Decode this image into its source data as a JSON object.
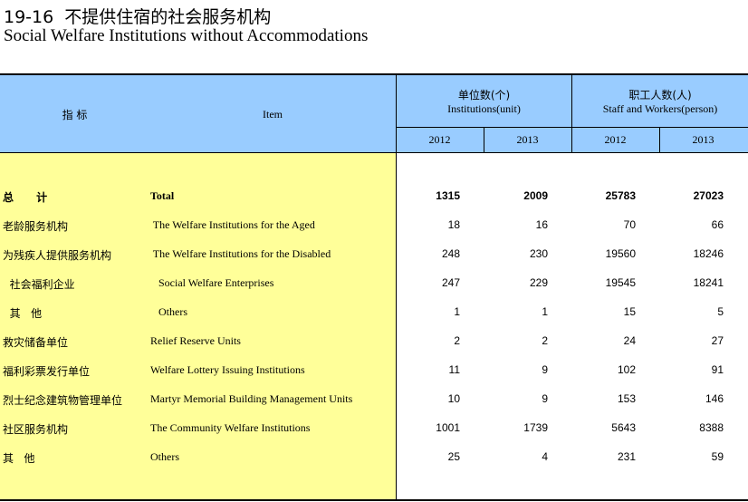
{
  "header": {
    "title": "19-16  不提供住宿的社会服务机构",
    "subtitle": "Social Welfare Institutions without Accommodations"
  },
  "table": {
    "columns": {
      "indicator": "指  标",
      "item": "Item",
      "units_cn": "单位数(个)",
      "units_en": "Institutions(unit)",
      "staff_cn": "职工人数(人)",
      "staff_en": "Staff and Workers(person)"
    },
    "years": [
      "2012",
      "2013",
      "2012",
      "2013"
    ],
    "rows": [
      [
        "总      计",
        "Total",
        1315,
        2009,
        25783,
        27023
      ],
      [
        "老龄服务机构",
        " The Welfare Institutions for the Aged",
        18,
        16,
        70,
        66
      ],
      [
        "为残疾人提供服务机构",
        " The Welfare Institutions for the Disabled",
        248,
        230,
        19560,
        18246
      ],
      [
        "  社会福利企业",
        "   Social Welfare Enterprises",
        247,
        229,
        19545,
        18241
      ],
      [
        "  其   他",
        "   Others",
        1,
        1,
        15,
        5
      ],
      [
        "救灾储备单位",
        "Relief Reserve Units",
        2,
        2,
        24,
        27
      ],
      [
        "福利彩票发行单位",
        "Welfare Lottery Issuing Institutions",
        11,
        9,
        102,
        91
      ],
      [
        "烈士纪念建筑物管理单位",
        "Martyr Memorial Building Management Units",
        10,
        9,
        153,
        146
      ],
      [
        "社区服务机构",
        "The Community Welfare Institutions",
        1001,
        1739,
        5643,
        8388
      ],
      [
        "其   他",
        "Others",
        25,
        4,
        231,
        59
      ]
    ]
  }
}
